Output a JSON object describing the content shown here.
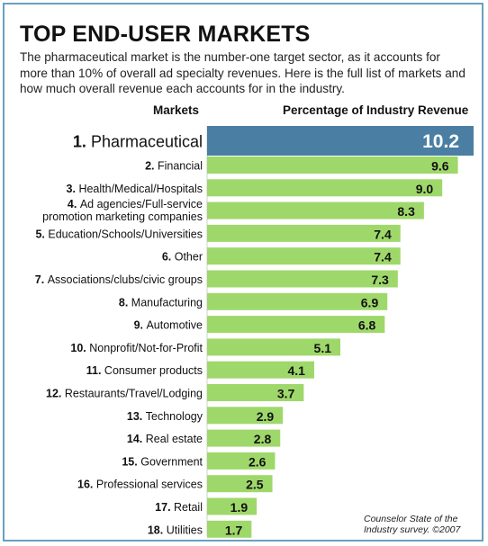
{
  "title": "TOP END-USER MARKETS",
  "subtitle": "The pharmaceutical market is the number-one target sector, as it accounts for more than 10% of overall ad specialty revenues. Here is the full list of markets and how much overall revenue each accounts for in the industry.",
  "headers": {
    "markets": "Markets",
    "percentage": "Percentage of Industry Revenue"
  },
  "credit": "Counselor State of the Industry survey. ©2007",
  "colors": {
    "highlight": "#4a7fa3",
    "bar": "#9fd86a",
    "frame": "#6aa0bf"
  },
  "chart_data": {
    "type": "bar",
    "orientation": "horizontal",
    "categories": [
      "1. Pharmaceutical",
      "2. Financial",
      "3. Health/Medical/Hospitals",
      "4. Ad agencies/Full-service promotion marketing companies",
      "5. Education/Schools/Universities",
      "6. Other",
      "7. Associations/clubs/civic groups",
      "8. Manufacturing",
      "9. Automotive",
      "10. Nonprofit/Not-for-Profit",
      "11. Consumer products",
      "12. Restaurants/Travel/Lodging",
      "13. Technology",
      "14. Real estate",
      "15. Government",
      "16. Professional services",
      "17. Retail",
      "18. Utilities"
    ],
    "values": [
      10.2,
      9.6,
      9.0,
      8.3,
      7.4,
      7.4,
      7.3,
      6.9,
      6.8,
      5.1,
      4.1,
      3.7,
      2.9,
      2.8,
      2.6,
      2.5,
      1.9,
      1.7
    ],
    "value_labels": [
      "10.2",
      "9.6",
      "9.0",
      "8.3",
      "7.4",
      "7.4",
      "7.3",
      "6.9",
      "6.8",
      "5.1",
      "4.1",
      "3.7",
      "2.9",
      "2.8",
      "2.6",
      "2.5",
      "1.9",
      "1.7"
    ],
    "title": "TOP END-USER MARKETS",
    "xlabel": "Percentage of Industry Revenue",
    "ylabel": "Markets",
    "xlim": [
      0,
      10.2
    ],
    "grid": false,
    "legend": "none"
  }
}
